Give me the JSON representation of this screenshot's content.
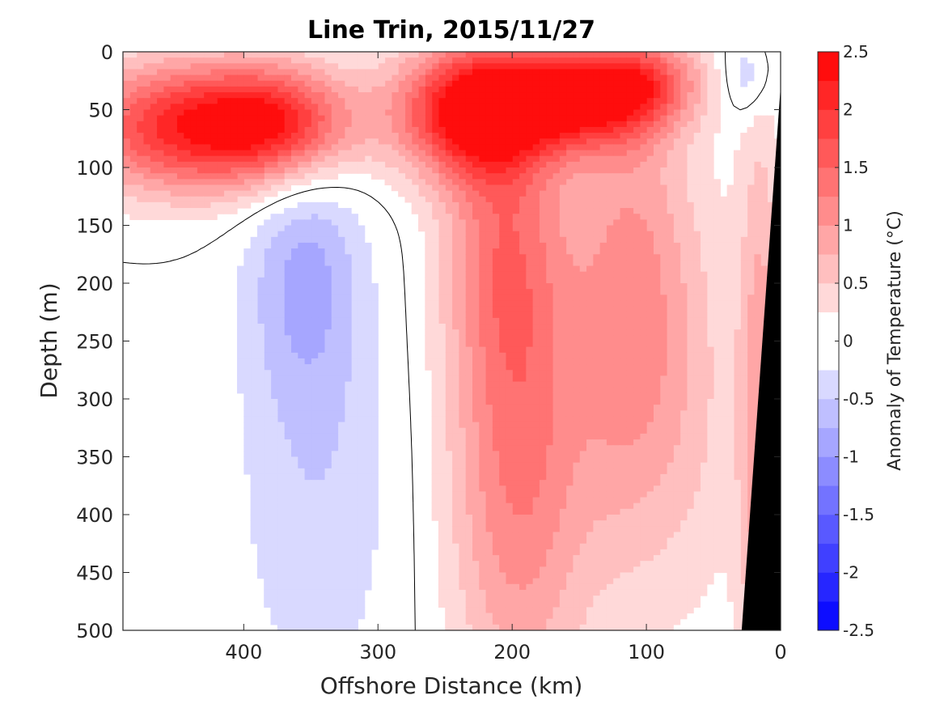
{
  "chart_data": {
    "type": "heatmap",
    "title": "Line Trin, 2015/11/27",
    "xlabel": "Offshore Distance (km)",
    "ylabel": "Depth (m)",
    "xlim": [
      490,
      0
    ],
    "ylim": [
      0,
      500
    ],
    "x_reversed": true,
    "y_reversed": true,
    "x_ticks": [
      400,
      300,
      200,
      100,
      0
    ],
    "x_tick_labels": [
      "400",
      "300",
      "200",
      "100",
      "0"
    ],
    "y_ticks": [
      0,
      50,
      100,
      150,
      200,
      250,
      300,
      350,
      400,
      450,
      500
    ],
    "y_tick_labels": [
      "0",
      "50",
      "100",
      "150",
      "200",
      "250",
      "300",
      "350",
      "400",
      "450",
      "500"
    ],
    "colorbar": {
      "label": "Anomaly of Temperature (°C)",
      "range": [
        -2.5,
        2.5
      ],
      "step": 0.25,
      "ticks": [
        2.5,
        2,
        1.5,
        1,
        0.5,
        0,
        -0.5,
        -1,
        -1.5,
        -2,
        -2.5
      ],
      "tick_labels": [
        "2.5",
        "2",
        "1.5",
        "1",
        "0.5",
        "0",
        "-0.5",
        "-1",
        "-1.5",
        "-2",
        "-2.5"
      ],
      "colormap": "blue-white-red"
    },
    "zero_contour": "black",
    "bathymetry_color": "#000000",
    "grid": false,
    "features": [
      {
        "name": "surface warm layer",
        "region": "x 490-320 km, depth 0-140 m",
        "anomaly_max": 2.0
      },
      {
        "name": "warm core",
        "region": "x 270-90 km, depth 0-120 m",
        "anomaly_max": 2.25
      },
      {
        "name": "subsurface cool tongue",
        "region": "x 420-300 km, depth 90-500 m",
        "anomaly_min": -0.5
      },
      {
        "name": "deep warm plume",
        "region": "x 260-140 km, depth 150-500 m",
        "anomaly_max": 1.25
      },
      {
        "name": "deep warm plume east",
        "region": "x 140-90 km, depth 100-420 m",
        "anomaly_max": 1.0
      },
      {
        "name": "coastal cool patch",
        "region": "x 40-10 km, depth 0-50 m",
        "anomaly_min": -0.5
      },
      {
        "name": "nearshore warm strip",
        "region": "x 30-0 km, depth 100-500 m",
        "anomaly_max": 1.0
      }
    ]
  }
}
